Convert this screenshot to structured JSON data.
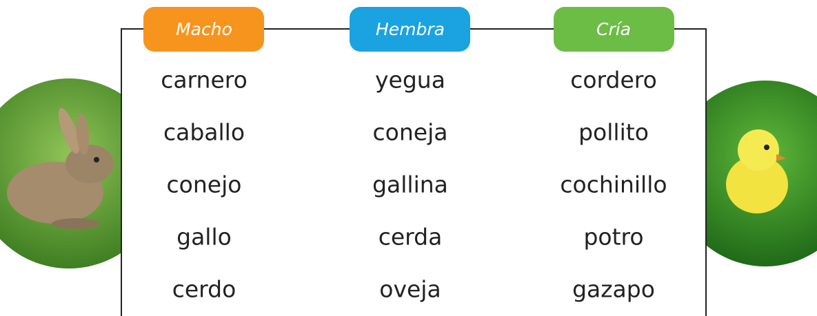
{
  "table": {
    "headers": [
      "Macho",
      "Hembra",
      "Cría"
    ],
    "rows": [
      [
        "carnero",
        "yegua",
        "cordero"
      ],
      [
        "caballo",
        "coneja",
        "pollito"
      ],
      [
        "conejo",
        "gallina",
        "cochinillo"
      ],
      [
        "gallo",
        "cerda",
        "potro"
      ],
      [
        "cerdo",
        "oveja",
        "gazapo"
      ]
    ]
  }
}
